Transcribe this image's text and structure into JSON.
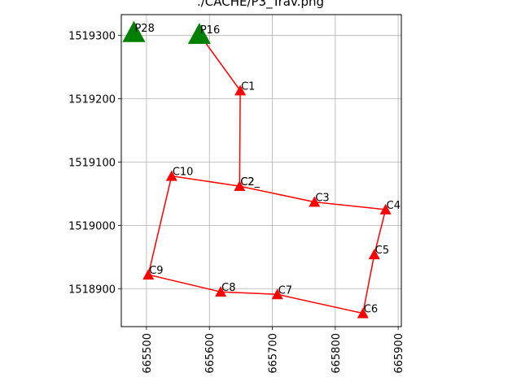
{
  "chart_data": {
    "type": "scatter",
    "title": "./CACHE/P3_Trav.png",
    "xlabel": "",
    "ylabel": "",
    "xlim": [
      665460,
      665905
    ],
    "ylim": [
      1518840,
      1519333
    ],
    "x_ticks": [
      665500,
      665600,
      665700,
      665800,
      665900
    ],
    "y_ticks": [
      1518900,
      1519000,
      1519100,
      1519200,
      1519300
    ],
    "x_tick_rotation": 90,
    "grid": true,
    "legend": "none",
    "colors": {
      "traverse": "#ff0000",
      "control": "#008000",
      "grid": "#b0b0b0"
    },
    "series": [
      {
        "marker": "triangle",
        "color": "#ff0000",
        "points": [
          {
            "label": "C1",
            "x": 665649,
            "y": 1519213
          },
          {
            "label": "C2",
            "x": 665648,
            "y": 1519062
          },
          {
            "label": "C3",
            "x": 665767,
            "y": 1519037
          },
          {
            "label": "C4",
            "x": 665880,
            "y": 1519025
          },
          {
            "label": "C5",
            "x": 665862,
            "y": 1518954
          },
          {
            "label": "C6",
            "x": 665844,
            "y": 1518861
          },
          {
            "label": "C7",
            "x": 665708,
            "y": 1518891
          },
          {
            "label": "C8",
            "x": 665618,
            "y": 1518895
          },
          {
            "label": "C9",
            "x": 665503,
            "y": 1518922
          },
          {
            "label": "C10",
            "x": 665540,
            "y": 1519078
          }
        ]
      },
      {
        "marker": "triangle",
        "color": "#008000",
        "points": [
          {
            "label": "P28",
            "x": 665480,
            "y": 1519305
          },
          {
            "label": "P16",
            "x": 665584,
            "y": 1519302
          }
        ]
      }
    ],
    "line_path": [
      "P16",
      "C1",
      "C2",
      "C3",
      "C4",
      "C5",
      "C6",
      "C7",
      "C8",
      "C9",
      "C10",
      "C2"
    ],
    "extra_labels": [
      {
        "text": "C2_",
        "x": 665648,
        "y": 1519062
      }
    ]
  }
}
